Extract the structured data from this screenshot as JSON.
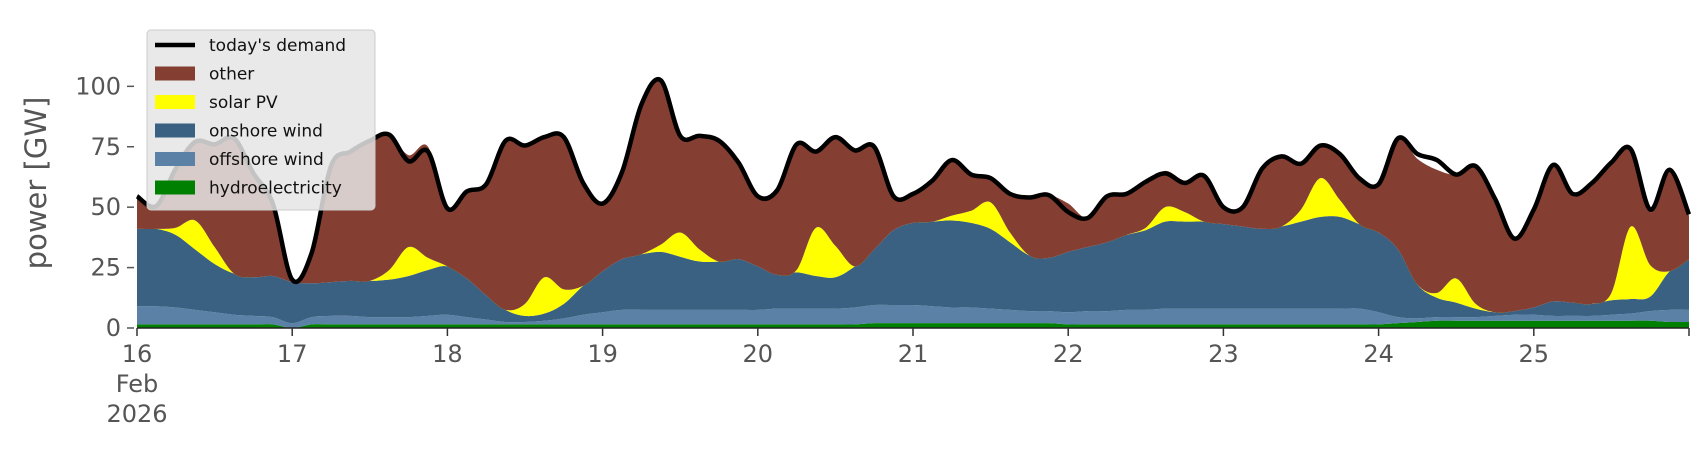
{
  "chart_data": {
    "type": "area",
    "ylabel": "power [GW]",
    "ylim": [
      0,
      120
    ],
    "yticks": [
      0,
      25,
      50,
      75,
      100
    ],
    "xlim": [
      "2026-02-16T00:00",
      "2026-02-26T00:00"
    ],
    "xtick_dates": [
      "2026-02-16",
      "2026-02-17",
      "2026-02-18",
      "2026-02-19",
      "2026-02-20",
      "2026-02-21",
      "2026-02-22",
      "2026-02-23",
      "2026-02-24",
      "2026-02-25",
      "2026-02-26"
    ],
    "xtick_labels": [
      "16",
      "17",
      "18",
      "19",
      "20",
      "21",
      "22",
      "23",
      "24",
      "25",
      ""
    ],
    "xtick_sub_month": "Feb",
    "xtick_sub_year": "2026",
    "grid": false,
    "legend_position": "top-left",
    "x": [
      "2026-02-16T00:00",
      "2026-02-16T03:00",
      "2026-02-16T06:00",
      "2026-02-16T09:00",
      "2026-02-16T12:00",
      "2026-02-16T15:00",
      "2026-02-16T18:00",
      "2026-02-16T21:00",
      "2026-02-17T00:00",
      "2026-02-17T03:00",
      "2026-02-17T06:00",
      "2026-02-17T09:00",
      "2026-02-17T12:00",
      "2026-02-17T15:00",
      "2026-02-17T18:00",
      "2026-02-17T21:00",
      "2026-02-18T00:00",
      "2026-02-18T03:00",
      "2026-02-18T06:00",
      "2026-02-18T09:00",
      "2026-02-18T12:00",
      "2026-02-18T15:00",
      "2026-02-18T18:00",
      "2026-02-18T21:00",
      "2026-02-19T00:00",
      "2026-02-19T03:00",
      "2026-02-19T06:00",
      "2026-02-19T09:00",
      "2026-02-19T12:00",
      "2026-02-19T15:00",
      "2026-02-19T18:00",
      "2026-02-19T21:00",
      "2026-02-20T00:00",
      "2026-02-20T03:00",
      "2026-02-20T06:00",
      "2026-02-20T09:00",
      "2026-02-20T12:00",
      "2026-02-20T15:00",
      "2026-02-20T18:00",
      "2026-02-20T21:00",
      "2026-02-21T00:00",
      "2026-02-21T03:00",
      "2026-02-21T06:00",
      "2026-02-21T09:00",
      "2026-02-21T12:00",
      "2026-02-21T15:00",
      "2026-02-21T18:00",
      "2026-02-21T21:00",
      "2026-02-22T00:00",
      "2026-02-22T03:00",
      "2026-02-22T06:00",
      "2026-02-22T09:00",
      "2026-02-22T12:00",
      "2026-02-22T15:00",
      "2026-02-22T18:00",
      "2026-02-22T21:00",
      "2026-02-23T00:00",
      "2026-02-23T03:00",
      "2026-02-23T06:00",
      "2026-02-23T09:00",
      "2026-02-23T12:00",
      "2026-02-23T15:00",
      "2026-02-23T18:00",
      "2026-02-23T21:00",
      "2026-02-24T00:00",
      "2026-02-24T03:00",
      "2026-02-24T06:00",
      "2026-02-24T09:00",
      "2026-02-24T12:00",
      "2026-02-24T15:00",
      "2026-02-24T18:00",
      "2026-02-24T21:00",
      "2026-02-25T00:00",
      "2026-02-25T03:00",
      "2026-02-25T06:00",
      "2026-02-25T09:00",
      "2026-02-25T12:00",
      "2026-02-25T15:00",
      "2026-02-25T18:00",
      "2026-02-25T21:00",
      "2026-02-26T00:00"
    ],
    "series": [
      {
        "name": "hydroelectricity",
        "color": "#008000",
        "values": [
          1.5,
          1.5,
          1.5,
          1.5,
          1.5,
          1.5,
          1.5,
          1.5,
          0,
          1.5,
          1.5,
          1.5,
          1.5,
          1.5,
          1.5,
          1.5,
          1.5,
          1.5,
          1.5,
          1.5,
          1.5,
          1.5,
          1.5,
          1.5,
          1.5,
          1.5,
          1.5,
          1.5,
          1.5,
          1.5,
          1.5,
          1.5,
          1.5,
          1.5,
          1.5,
          1.5,
          1.5,
          1.5,
          2,
          2,
          2,
          2,
          2,
          2,
          2,
          2,
          2,
          2,
          1.5,
          1.5,
          1.5,
          1.5,
          1.5,
          1.5,
          1.5,
          1.5,
          1.5,
          1.5,
          1.5,
          1.5,
          1.5,
          1.5,
          1.5,
          1.5,
          1.5,
          2,
          2.5,
          3,
          3,
          3,
          3,
          3,
          3,
          3,
          3,
          3,
          3,
          3,
          3,
          2.5,
          2.5
        ]
      },
      {
        "name": "offshore wind",
        "color": "#5b82a6",
        "values": [
          7.5,
          7.5,
          7,
          6,
          5,
          4,
          3.5,
          3,
          2,
          3,
          3.5,
          3.5,
          3,
          3,
          3,
          3.5,
          4,
          3,
          2,
          1,
          1,
          1.5,
          2.5,
          4,
          5,
          6,
          6,
          6,
          6,
          6,
          6,
          6,
          6,
          6.5,
          6.5,
          6.5,
          6.5,
          7,
          7.5,
          7.5,
          7.5,
          7,
          6.5,
          6.5,
          6,
          5.5,
          5,
          5,
          5,
          5.5,
          5.5,
          6,
          6,
          6.5,
          6.5,
          6.5,
          6.5,
          6.5,
          6.5,
          6.5,
          6.5,
          6.5,
          6.5,
          6.5,
          5,
          2.5,
          1.5,
          1.5,
          1.5,
          1.5,
          2,
          2.5,
          2.5,
          2,
          2,
          2,
          2.5,
          3,
          4,
          5,
          5
        ]
      },
      {
        "name": "onshore wind",
        "color": "#3b6182",
        "values": [
          32,
          32,
          30,
          25,
          20,
          17,
          16,
          17,
          17,
          14,
          14,
          14.5,
          15,
          15.5,
          17,
          19,
          20,
          16,
          10,
          5,
          2.5,
          3,
          6,
          12,
          17,
          21,
          23,
          24,
          22,
          20,
          20,
          21,
          18,
          14,
          15,
          13.5,
          13,
          17,
          23,
          31,
          34,
          35,
          36,
          35,
          33,
          28,
          23,
          22,
          25,
          26.5,
          28.5,
          31,
          33,
          36,
          36,
          36,
          35,
          34,
          33,
          34,
          36,
          38,
          38,
          35,
          33,
          28,
          14,
          8,
          6,
          3.5,
          1.5,
          1.5,
          3,
          6,
          5.5,
          5,
          6,
          6,
          6,
          16,
          21
        ]
      },
      {
        "name": "solar PV",
        "color": "#ffff00",
        "values": [
          0,
          0,
          3,
          12,
          7,
          0,
          0,
          0,
          0,
          0,
          0,
          0,
          0,
          4,
          12,
          5,
          0,
          0,
          0,
          0,
          5,
          15,
          6,
          0,
          0,
          0,
          0,
          3,
          10,
          5,
          0,
          0,
          0,
          0,
          1,
          20,
          13,
          0,
          0,
          0,
          0,
          0,
          2,
          5,
          11,
          4,
          0,
          0,
          0,
          0,
          0,
          0,
          1,
          6,
          4,
          0,
          0,
          0,
          0,
          0,
          5,
          16,
          7,
          0,
          0,
          0,
          0,
          2,
          10,
          2,
          0,
          0,
          0,
          0,
          0,
          0,
          3,
          30,
          13,
          0,
          0
        ]
      },
      {
        "name": "other",
        "color": "#843f32",
        "values": [
          13.5,
          9.5,
          24.5,
          32,
          42.5,
          56,
          43,
          30,
          0,
          12,
          48,
          54,
          58,
          56,
          38,
          46,
          24,
          36,
          46,
          70,
          66,
          58,
          63,
          44,
          28,
          36,
          62,
          68,
          40,
          47,
          50,
          40,
          29,
          35,
          52,
          32,
          45,
          48,
          42,
          14,
          12,
          17,
          23,
          15,
          10,
          15,
          24,
          26,
          20,
          12,
          19,
          17,
          18,
          15,
          13,
          19,
          7,
          8,
          25,
          29,
          19,
          13,
          19,
          19,
          20,
          46,
          52,
          51,
          43,
          57,
          47,
          30,
          40,
          56,
          44,
          50,
          54,
          33,
          22,
          42,
          18
        ]
      }
    ],
    "demand": {
      "name": "today's demand",
      "color": "#000000",
      "values": [
        54.5,
        50.5,
        66,
        77,
        76,
        78.5,
        64,
        51.5,
        20,
        31,
        67,
        73,
        77.5,
        80,
        69,
        73,
        49.5,
        56.5,
        59.5,
        77.5,
        75.5,
        79,
        79,
        60,
        51.5,
        64.5,
        92.5,
        102.5,
        79.5,
        79.5,
        77.5,
        68.5,
        54.5,
        57,
        76,
        73,
        79,
        73.5,
        75,
        54.5,
        55.5,
        61,
        69.5,
        63.5,
        62,
        55.5,
        54,
        55,
        48,
        45.5,
        54.5,
        55.5,
        60.5,
        64,
        60,
        63,
        50,
        50,
        66,
        71,
        68,
        75.5,
        72,
        62,
        59.5,
        78.5,
        72,
        69.5,
        63.5,
        67,
        53.5,
        37,
        49,
        67.5,
        55.5,
        60,
        68.5,
        74,
        49,
        65.5,
        47
      ]
    }
  }
}
